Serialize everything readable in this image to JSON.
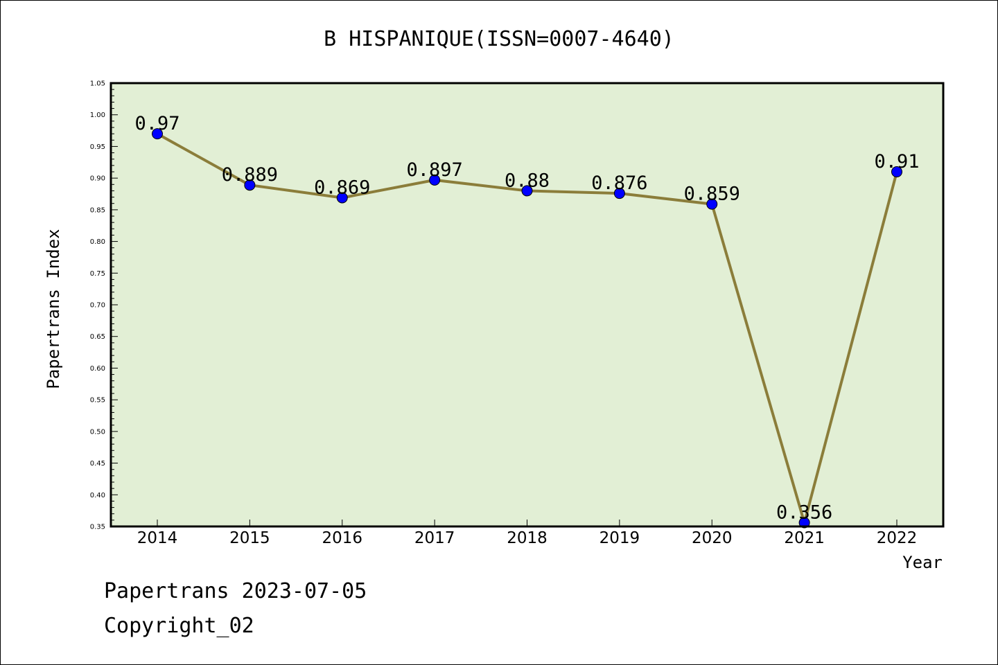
{
  "chart_data": {
    "type": "line",
    "title": "B HISPANIQUE(ISSN=0007-4640)",
    "xlabel": "Year",
    "ylabel": "Papertrans Index",
    "categories": [
      "2014",
      "2015",
      "2016",
      "2017",
      "2018",
      "2019",
      "2020",
      "2021",
      "2022"
    ],
    "series": [
      {
        "values": [
          0.97,
          0.889,
          0.869,
          0.897,
          0.88,
          0.876,
          0.859,
          0.356,
          0.91
        ],
        "labels": [
          "0.97",
          "0.889",
          "0.869",
          "0.897",
          "0.88",
          "0.876",
          "0.859",
          "0.356",
          "0.91"
        ]
      }
    ],
    "ylim": [
      0.35,
      1.05
    ],
    "yticks": [
      "0.35",
      "0.40",
      "0.45",
      "0.50",
      "0.55",
      "0.60",
      "0.65",
      "0.70",
      "0.75",
      "0.80",
      "0.85",
      "0.90",
      "0.95",
      "1.00",
      "1.05"
    ],
    "legend": "none",
    "grid": false,
    "colors": {
      "plot_background": "#e2efd5",
      "line": "#8b7d3a",
      "marker": "#0000ff"
    }
  },
  "footer": {
    "date_line": "Papertrans 2023-07-05",
    "copyright": "Copyright_02"
  }
}
